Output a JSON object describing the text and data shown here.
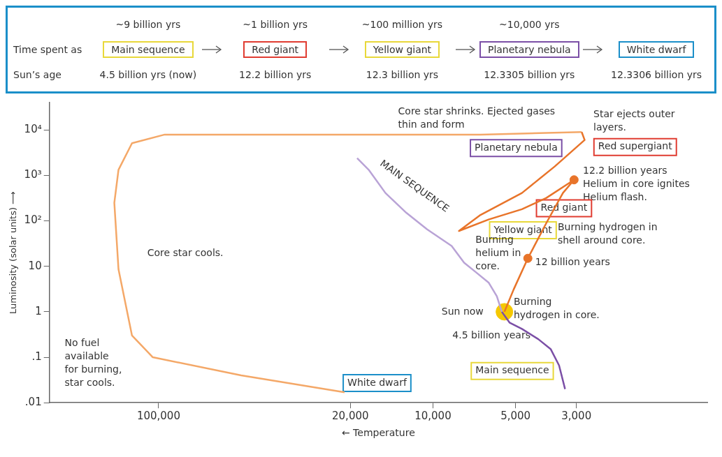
{
  "chart_data": [
    {
      "type": "other",
      "categories": [
        "Main sequence",
        "Red giant",
        "Yellow giant",
        "Planetary nebula",
        "White dwarf"
      ],
      "colors": [
        "#e8d83a",
        "#e03c31",
        "#e8d83a",
        "#7b4fa6",
        "#1b8fc9"
      ],
      "annotations": [
        "Time spent as",
        "Sun’s age",
        "~9 billion yrs",
        "~1 billion yrs",
        "~100 million yrs",
        "~10,000 yrs",
        "4.5 billion yrs (now)",
        "12.2 billion yrs",
        "12.3 billion yrs",
        "12.3305 billion yrs",
        "12.3306 billion yrs"
      ]
    },
    {
      "type": "line",
      "xlabel": "← Temperature",
      "ylabel": "Luminosity (solar units) ⟶",
      "log": "xy",
      "xlim": [
        250000,
        1000
      ],
      "ylim": [
        0.01,
        40000
      ],
      "xticks": [
        {
          "value": 100000,
          "label": "100,000"
        },
        {
          "value": 20000,
          "label": "20,000"
        },
        {
          "value": 10000,
          "label": "10,000"
        },
        {
          "value": 5000,
          "label": "5,000"
        },
        {
          "value": 3000,
          "label": "3,000"
        }
      ],
      "yticks": [
        {
          "value": 0.01,
          "label": ".01"
        },
        {
          "value": 0.1,
          "label": ".1"
        },
        1,
        10,
        {
          "value": 100,
          "label": "10²"
        },
        {
          "value": 1000,
          "label": "10³"
        },
        {
          "value": 10000,
          "label": "10⁴"
        }
      ],
      "grid": false,
      "legend": false,
      "marker": "none",
      "series": [
        {
          "type": "line",
          "color": "#b9a3d6",
          "x": [
            18900,
            17100,
            14900,
            12500,
            10500,
            8550,
            7700,
            6950,
            6270,
            5850,
            5610
          ],
          "values": [
            2400,
            1300,
            410,
            150,
            65,
            28,
            12,
            7.3,
            4.4,
            2.2,
            1.0
          ]
        },
        {
          "type": "line",
          "color": "#7b4fa6",
          "x": [
            5610,
            5260,
            4740,
            4130,
            3720,
            3470,
            3300
          ],
          "values": [
            1.0,
            0.58,
            0.42,
            0.25,
            0.15,
            0.066,
            0.02
          ]
        },
        {
          "type": "line",
          "color": "#e8742a",
          "x": [
            5490,
            5080,
            4510,
            3860,
            3360,
            3060,
            3860,
            4740,
            6270,
            8040,
            6710,
            4740,
            3600,
            2800,
            2870
          ],
          "values": [
            1,
            3.1,
            15,
            90,
            410,
            800,
            320,
            180,
            107,
            60,
            135,
            410,
            1570,
            6000,
            9000
          ]
        },
        {
          "type": "line",
          "color": "#f4a868",
          "x": [
            2870,
            6710,
            19000,
            95000,
            125000,
            140000,
            145000,
            140000,
            125000,
            105000,
            50000,
            21000
          ],
          "values": [
            9000,
            7900,
            7900,
            7900,
            5100,
            1330,
            250,
            8.6,
            0.3,
            0.1,
            0.04,
            0.017
          ]
        },
        {
          "type": "scatter",
          "color": "#f5c800",
          "marker": "circle",
          "x": [
            5490
          ],
          "values": [
            1
          ]
        },
        {
          "type": "scatter",
          "color": "#e8742a",
          "marker": "circle",
          "x": [
            4510,
            3060
          ],
          "values": [
            15,
            800
          ]
        }
      ],
      "annotations": [
        "Core star shrinks. Ejected gases\nthin and form",
        "Planetary nebula",
        "Star ejects outer\nlayers.",
        "Red supergiant",
        "12.2 billion years\nHelium in core ignites\nHelium flash.",
        "Red giant",
        "Burning hydrogen in\nshell around core.",
        "12 billion years",
        "Yellow giant",
        "Burning\nhelium in\ncore.",
        "Core star cools.",
        "No fuel\navailable\nfor burning,\nstar cools.",
        "Sun now",
        "4.5 billion years",
        "Burning\nhydrogen in core.",
        "Main sequence",
        "White dwarf",
        "MAIN SEQUENCE"
      ]
    }
  ]
}
